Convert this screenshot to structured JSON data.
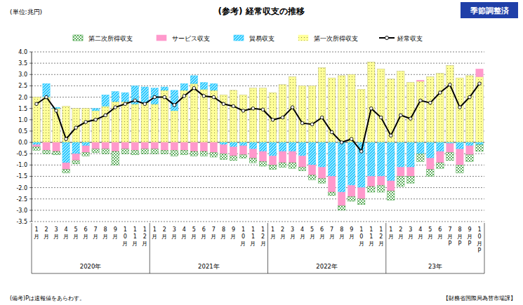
{
  "chart_data": {
    "type": "bar",
    "stacked": true,
    "title": "(参考) 経常収支の推移",
    "unit_label": "(単位:兆円)",
    "badge": "季節調整済",
    "note": "(備考)Pは速報値をあらわす。",
    "source": "【財務省国際局為替市場課】",
    "grid": true,
    "legend": "top",
    "categories": [
      "1月",
      "2月",
      "3月",
      "4月",
      "5月",
      "6月",
      "7月",
      "8月",
      "9月",
      "10月",
      "11月",
      "12月",
      "1月",
      "2月",
      "3月",
      "4月",
      "5月",
      "6月",
      "7月",
      "8月",
      "9月",
      "10月",
      "11月",
      "12月",
      "1月",
      "2月",
      "3月",
      "4月",
      "5月",
      "6月",
      "7月",
      "8月",
      "9月",
      "10月",
      "11月",
      "12月",
      "1月",
      "2月",
      "3月",
      "4月",
      "5月",
      "6月",
      "7月P",
      "8月P",
      "9月P",
      "10月P"
    ],
    "x_groups": [
      {
        "label": "2020年",
        "size": 12
      },
      {
        "label": "2021年",
        "size": 12
      },
      {
        "label": "2022年",
        "size": 12
      },
      {
        "label": "23年",
        "size": 10
      }
    ],
    "ylim": [
      -3.5,
      4
    ],
    "yticks": [
      -3.5,
      {
        "value": -3,
        "label": "-3.0"
      },
      -2.5,
      {
        "value": -2,
        "label": "-2.0"
      },
      -1.5,
      {
        "value": -1,
        "label": "-1.0"
      },
      -0.5,
      {
        "value": 0,
        "label": "0.0"
      },
      0.5,
      {
        "value": 1,
        "label": "1.0"
      },
      1.5,
      {
        "value": 2,
        "label": "2.0"
      },
      2.5,
      {
        "value": 3,
        "label": "3.0"
      },
      3.5,
      {
        "value": 4,
        "label": "4.0"
      }
    ],
    "series": [
      {
        "name": "第二次所得収支",
        "type": "bar",
        "color": "#339933",
        "values": [
          -0.15,
          -0.15,
          -0.15,
          -0.15,
          -0.15,
          -0.15,
          -0.15,
          -0.2,
          -0.6,
          -0.2,
          -0.2,
          -0.2,
          -0.2,
          -0.15,
          -0.25,
          -0.2,
          -0.2,
          -0.2,
          -0.2,
          -0.25,
          -0.2,
          -0.15,
          -0.2,
          -0.2,
          -0.2,
          -0.2,
          -0.25,
          -0.15,
          -0.2,
          -0.2,
          -0.15,
          -0.2,
          -0.2,
          -0.25,
          -0.25,
          -0.3,
          -0.4,
          -0.45,
          -0.3,
          -0.35,
          -0.3,
          -0.25,
          -0.35,
          -0.35,
          -0.3,
          -0.3
        ]
      },
      {
        "name": "サービス収支",
        "type": "bar",
        "color": "#ff99cc",
        "values": [
          -0.1,
          -0.35,
          -0.4,
          -0.3,
          -0.3,
          -0.3,
          -0.3,
          -0.3,
          -0.4,
          -0.3,
          -0.35,
          -0.3,
          -0.3,
          -0.35,
          -0.35,
          -0.35,
          -0.4,
          -0.4,
          -0.45,
          -0.4,
          -0.4,
          -0.4,
          -0.4,
          -0.45,
          -0.4,
          -0.5,
          -0.5,
          -0.5,
          -0.45,
          -0.5,
          -0.7,
          -0.6,
          -0.5,
          -0.5,
          -0.45,
          -0.4,
          -0.45,
          -0.4,
          -0.4,
          0.05,
          -0.5,
          -0.5,
          -0.4,
          -0.7,
          -0.4,
          0.35
        ]
      },
      {
        "name": "貿易収支",
        "type": "bar",
        "color": "#33ccff",
        "values": [
          -0.1,
          0.6,
          0.05,
          -0.9,
          -0.5,
          -0.15,
          0.1,
          0.5,
          0.45,
          0.4,
          0.8,
          0.7,
          0.7,
          0.15,
          0.9,
          0.3,
          0.35,
          0.3,
          0.3,
          -0.1,
          -0.2,
          -0.15,
          -0.3,
          -0.4,
          -0.6,
          -0.4,
          -0.4,
          -0.6,
          -1.0,
          -1.1,
          -1.5,
          -2.2,
          -1.9,
          -2.0,
          -1.5,
          -1.5,
          -1.7,
          -1.1,
          -1.1,
          -0.5,
          -0.7,
          -0.4,
          -0.05,
          -0.3,
          -0.15,
          -0.1
        ]
      },
      {
        "name": "第一次所得収支",
        "type": "bar",
        "color": "#ffff99",
        "values": [
          2.0,
          2.0,
          1.5,
          1.6,
          1.5,
          1.5,
          1.4,
          1.6,
          1.8,
          1.8,
          1.7,
          1.75,
          1.7,
          2.3,
          1.4,
          2.3,
          2.6,
          2.35,
          2.3,
          2.1,
          2.3,
          2.1,
          2.4,
          2.4,
          2.2,
          2.55,
          2.9,
          2.5,
          2.5,
          3.3,
          2.85,
          2.95,
          3.0,
          2.35,
          3.55,
          3.25,
          2.8,
          3.15,
          2.65,
          2.7,
          2.9,
          3.05,
          3.4,
          2.85,
          2.95,
          2.9
        ]
      },
      {
        "name": "経常収支",
        "type": "line",
        "color": "#000000",
        "marker": "circle",
        "values": [
          1.7,
          2.0,
          1.4,
          0.15,
          0.65,
          0.9,
          1.0,
          1.2,
          1.55,
          1.7,
          1.85,
          1.7,
          2.0,
          2.0,
          1.65,
          2.05,
          2.4,
          2.05,
          2.0,
          1.7,
          1.6,
          1.4,
          1.5,
          1.45,
          1.0,
          1.1,
          1.55,
          0.85,
          0.8,
          1.1,
          0.45,
          0.0,
          0.15,
          -0.4,
          1.5,
          1.1,
          0.3,
          1.2,
          1.05,
          1.85,
          1.75,
          2.2,
          2.55,
          1.55,
          2.0,
          2.6
        ]
      }
    ]
  }
}
